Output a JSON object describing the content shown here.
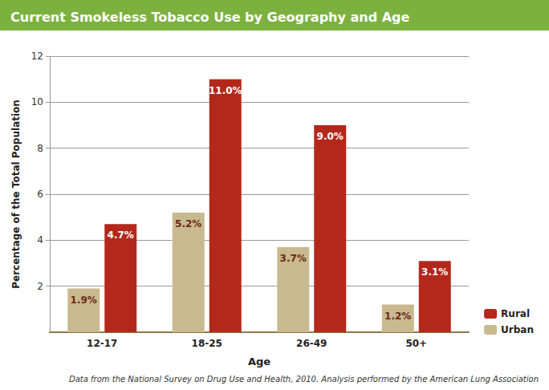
{
  "chart_data": {
    "type": "bar",
    "title": "Current Smokeless Tobacco Use by Geography and Age",
    "x_label": "Age",
    "y_label": "Percentage of the Total Population",
    "annotations": [
      "Data from the National Survey on Drug Use and Health, 2010. Analysis performed by the American Lung Association"
    ],
    "categories": [
      "12-17",
      "18-25",
      "26-49",
      "50+"
    ],
    "series": [
      {
        "name": "Urban",
        "color": "#c9b98e",
        "values": [
          1.9,
          5.2,
          3.7,
          1.2
        ],
        "value_labels": [
          "1.9%",
          "5.2%",
          "3.7%",
          "1.2%"
        ]
      },
      {
        "name": "Rural",
        "color": "#b3281b",
        "values": [
          4.7,
          11.0,
          9.0,
          3.1
        ],
        "value_labels": [
          "4.7%",
          "11.0%",
          "9.0%",
          "3.1%"
        ]
      }
    ],
    "ylim": [
      0,
      12
    ],
    "yticks": [
      2,
      4,
      6,
      8,
      10,
      12
    ],
    "grid": true,
    "data_labels": true,
    "legend": "lower right"
  }
}
